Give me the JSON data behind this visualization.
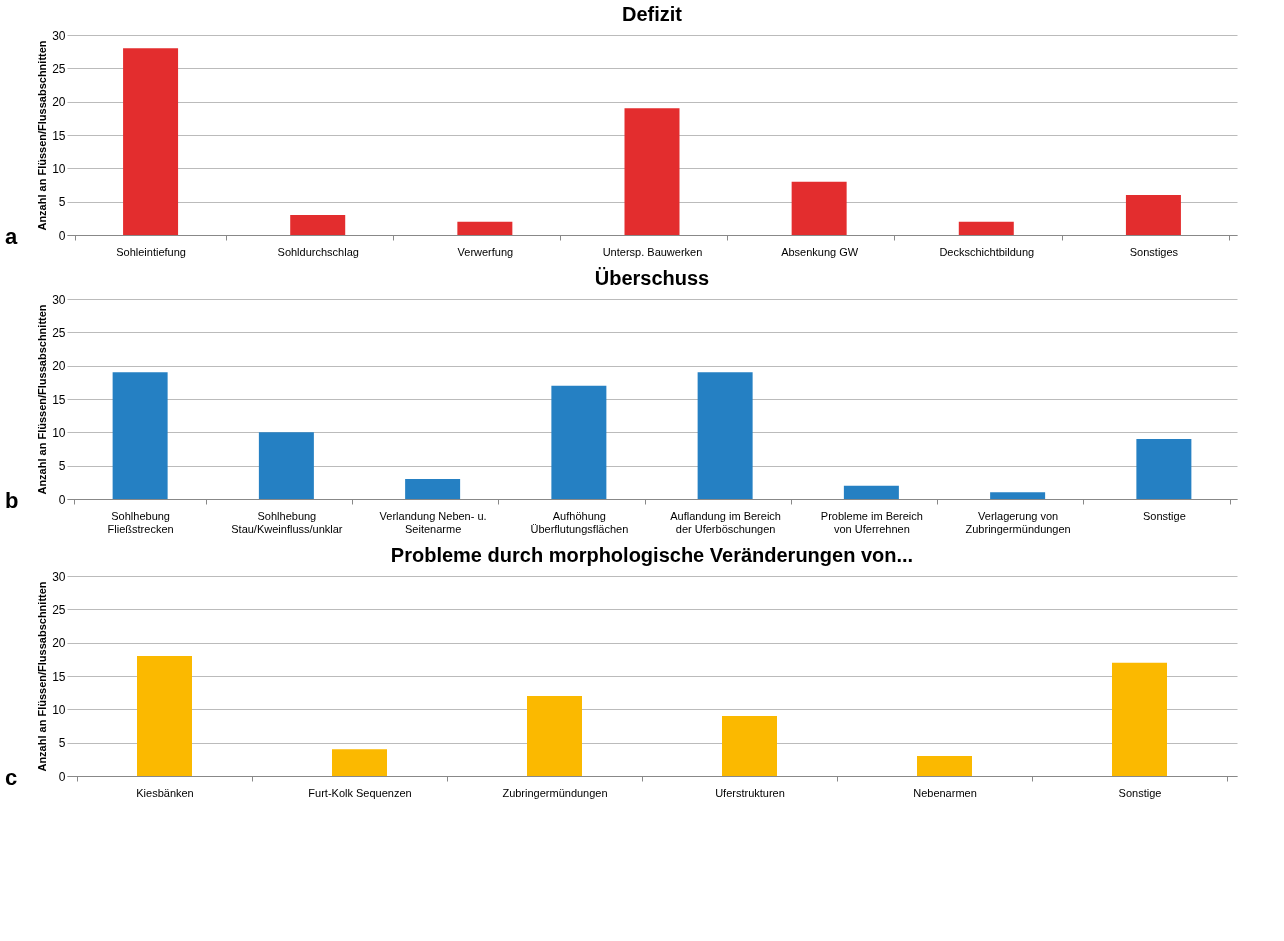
{
  "chart_data": [
    {
      "type": "bar",
      "title": "Defizit",
      "ylabel": "Anzahl an Flüssen/Flussabschnitten",
      "categories": [
        "Sohleintiefung",
        "Sohldurchschlag",
        "Verwerfung",
        "Untersp. Bauwerken",
        "Absenkung GW",
        "Deckschichtbildung",
        "Sonstiges"
      ],
      "values": [
        28,
        3,
        2,
        19,
        8,
        2,
        6
      ],
      "color": "#e32d2e",
      "ylim": [
        0,
        30
      ],
      "yticks": [
        0,
        5,
        10,
        15,
        20,
        25,
        30
      ],
      "grid": "y",
      "annotations": [
        "a"
      ]
    },
    {
      "type": "bar",
      "title": "Überschuss",
      "ylabel": "Anzahl an Flüssen/Flussabschnitten",
      "categories": [
        "Sohlhebung\nFließstrecken",
        "Sohlhebung\nStau/Kweinfluss/unklar",
        "Verlandung Neben- u.\nSeitenarme",
        "Aufhöhung\nÜberflutungsflächen",
        "Auflandung im Bereich\nder Uferböschungen",
        "Probleme im Bereich\nvon Uferrehnen",
        "Verlagerung von\nZubringermündungen",
        "Sonstige"
      ],
      "values": [
        19,
        10,
        3,
        17,
        19,
        2,
        1,
        9
      ],
      "color": "#2580c3",
      "ylim": [
        0,
        30
      ],
      "yticks": [
        0,
        5,
        10,
        15,
        20,
        25,
        30
      ],
      "grid": "y",
      "annotations": [
        "b"
      ]
    },
    {
      "type": "bar",
      "title": "Probleme durch morphologische Veränderungen von...",
      "ylabel": "Anzahl an Flüssen/Flussabschnitten",
      "categories": [
        "Kiesbänken",
        "Furt-Kolk Sequenzen",
        "Zubringermündungen",
        "Uferstrukturen",
        "Nebenarmen",
        "Sonstige"
      ],
      "values": [
        18,
        4,
        12,
        9,
        3,
        17
      ],
      "color": "#fbb900",
      "ylim": [
        0,
        30
      ],
      "yticks": [
        0,
        5,
        10,
        15,
        20,
        25,
        30
      ],
      "grid": "y",
      "annotations": [
        "c"
      ]
    }
  ]
}
